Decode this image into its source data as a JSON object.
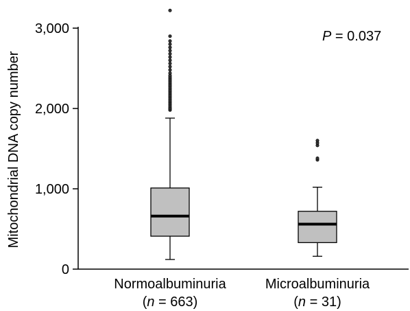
{
  "chart_data": {
    "type": "box",
    "title": "",
    "xlabel": "",
    "ylabel": "Mitochondrial DNA copy number",
    "ylim": [
      0,
      3000
    ],
    "yticks": [
      0,
      1000,
      2000,
      3000
    ],
    "ytick_labels": [
      "0",
      "1,000",
      "2,000",
      "3,000"
    ],
    "annotation": {
      "p_symbol": "P",
      "p_text": " = 0.037"
    },
    "groups": [
      {
        "category": "Normoalbuminuria",
        "n_prefix": "(",
        "n_symbol": "n",
        "n_suffix": " = 663)",
        "min": 120,
        "q1": 410,
        "median": 660,
        "q3": 1010,
        "max": 1880,
        "outliers": [
          1980,
          1995,
          2010,
          2030,
          2050,
          2070,
          2090,
          2110,
          2130,
          2150,
          2170,
          2190,
          2210,
          2230,
          2250,
          2270,
          2290,
          2310,
          2330,
          2350,
          2370,
          2390,
          2410,
          2440,
          2480,
          2520,
          2560,
          2600,
          2640,
          2680,
          2720,
          2760,
          2800,
          2840,
          2900,
          3220
        ]
      },
      {
        "category": "Microalbuminuria",
        "n_prefix": "(",
        "n_symbol": "n",
        "n_suffix": " = 31)",
        "min": 160,
        "q1": 330,
        "median": 560,
        "q3": 720,
        "max": 1020,
        "outliers": [
          1360,
          1380,
          1540,
          1570,
          1600
        ]
      }
    ],
    "colors": {
      "box_fill": "#c0c0c0",
      "line": "#000000",
      "background": "#ffffff"
    }
  }
}
